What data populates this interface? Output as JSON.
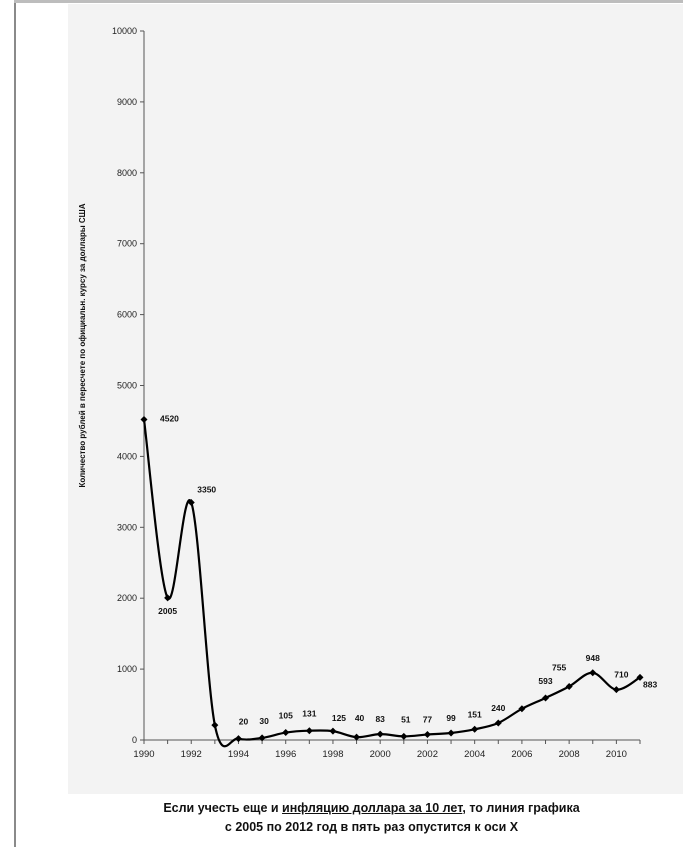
{
  "chart_data": {
    "type": "line",
    "title": "",
    "xlabel": "",
    "ylabel": "Количество рублей в пересчете по официальн. курсу за доллары США",
    "xlim": [
      1990,
      2011
    ],
    "ylim": [
      0,
      10000
    ],
    "x_ticks": [
      1990,
      1992,
      1994,
      1996,
      1998,
      2000,
      2002,
      2004,
      2006,
      2008,
      2010
    ],
    "y_ticks": [
      0,
      1000,
      2000,
      3000,
      4000,
      5000,
      6000,
      7000,
      8000,
      9000,
      10000
    ],
    "grid": false,
    "legend": "none",
    "line_color": "#000000",
    "series": [
      {
        "x": [
          1990,
          1991,
          1992,
          1993,
          1994,
          1995,
          1996,
          1997,
          1998,
          1999,
          2000,
          2001,
          2002,
          2003,
          2004,
          2005,
          2006,
          2007,
          2008,
          2009,
          2010,
          2011
        ],
        "values": [
          4520,
          2005,
          3350,
          210,
          20,
          30,
          105,
          131,
          125,
          40,
          83,
          51,
          77,
          99,
          151,
          240,
          440,
          593,
          755,
          948,
          710,
          883
        ]
      }
    ],
    "data_labels": [
      {
        "x": 1990,
        "y": 4520,
        "text": "4520"
      },
      {
        "x": 1991,
        "y": 2005,
        "text": "2005"
      },
      {
        "x": 1992,
        "y": 3350,
        "text": "3350"
      },
      {
        "x": 1994,
        "y": 20,
        "text": "20"
      },
      {
        "x": 1995,
        "y": 30,
        "text": "30"
      },
      {
        "x": 1996,
        "y": 105,
        "text": "105"
      },
      {
        "x": 1997,
        "y": 131,
        "text": "131"
      },
      {
        "x": 1998,
        "y": 125,
        "text": "125"
      },
      {
        "x": 1999,
        "y": 40,
        "text": "40"
      },
      {
        "x": 2000,
        "y": 83,
        "text": "83"
      },
      {
        "x": 2001,
        "y": 51,
        "text": "51"
      },
      {
        "x": 2002,
        "y": 77,
        "text": "77"
      },
      {
        "x": 2003,
        "y": 99,
        "text": "99"
      },
      {
        "x": 2004,
        "y": 151,
        "text": "151"
      },
      {
        "x": 2005,
        "y": 240,
        "text": "240"
      },
      {
        "x": 2007,
        "y": 593,
        "text": "593"
      },
      {
        "x": 2008,
        "y": 755,
        "text": "755"
      },
      {
        "x": 2009,
        "y": 948,
        "text": "948"
      },
      {
        "x": 2010,
        "y": 710,
        "text": "710"
      },
      {
        "x": 2011,
        "y": 883,
        "text": "883"
      }
    ]
  },
  "caption": {
    "part1": "Если учесть еще и ",
    "underlined": "инфляцию доллара за 10 лет",
    "part2": ", то линия графика",
    "line2": "с 2005 по 2012 год в пять раз опустится  к оси Х"
  }
}
